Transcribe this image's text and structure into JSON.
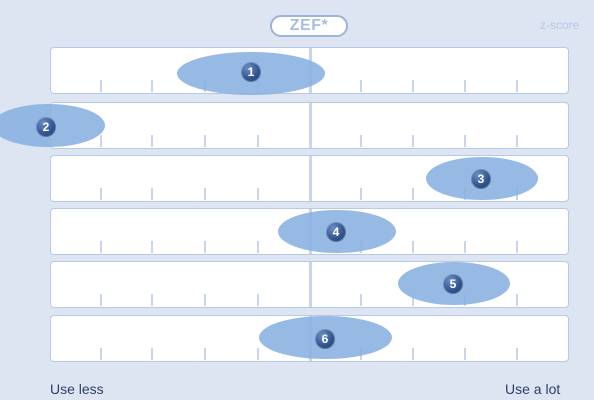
{
  "header": {
    "logo_text": "ZEF*",
    "zscore_text": "z-score"
  },
  "scale": {
    "left_label": "Use less",
    "right_label": "Use a lot"
  },
  "items": [
    {
      "label": "1"
    },
    {
      "label": "2"
    },
    {
      "label": "3"
    },
    {
      "label": "4"
    },
    {
      "label": "5"
    },
    {
      "label": "6"
    }
  ]
}
